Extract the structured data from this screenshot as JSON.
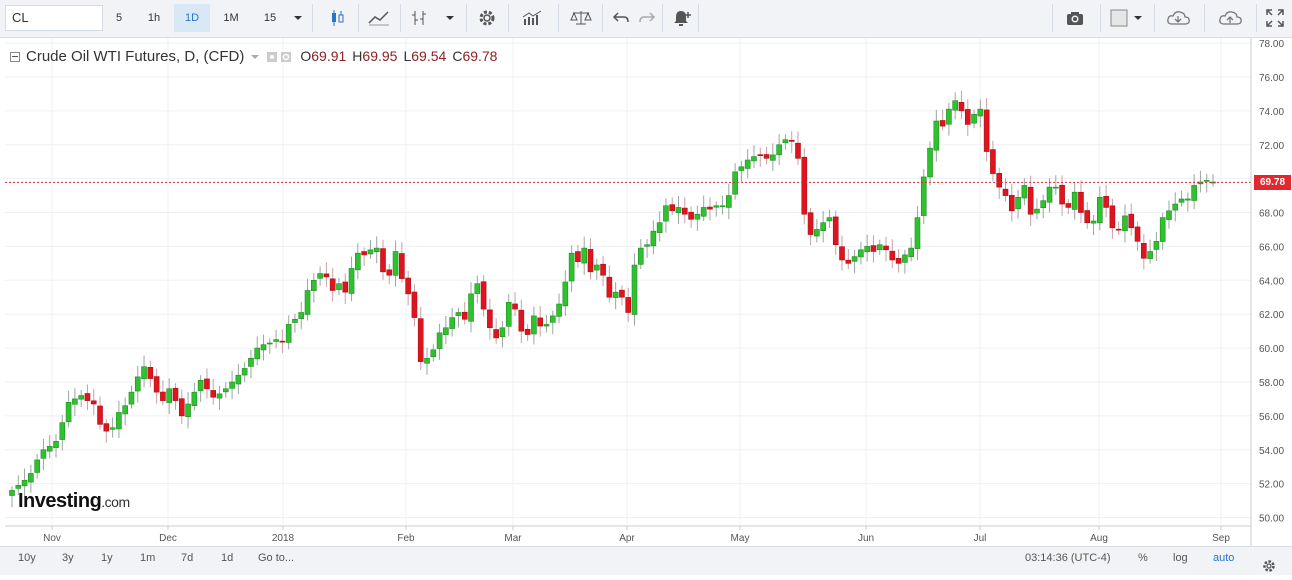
{
  "toolbar": {
    "symbol": "CL",
    "intervals": [
      "5",
      "1h",
      "1D",
      "1M",
      "15"
    ],
    "selected_interval": "1D",
    "icons": [
      "candles-icon",
      "indicators-icon",
      "compare-icon",
      "settings-icon",
      "studies-icon",
      "scale-icon",
      "undo-icon",
      "redo-icon",
      "alert-icon",
      "camera-icon",
      "template-icon",
      "cloud-load-icon",
      "cloud-save-icon",
      "fullscreen-icon"
    ]
  },
  "legend": {
    "title": "Crude Oil WTI Futures, D, (CFD)",
    "o_label": "O",
    "o": "69.91",
    "h_label": "H",
    "h": "69.95",
    "l_label": "L",
    "l": "69.54",
    "c_label": "C",
    "c": "69.78"
  },
  "logo": {
    "name": "Investing",
    "suffix": ".com"
  },
  "bottom": {
    "ranges": [
      "10y",
      "3y",
      "1y",
      "1m",
      "7d",
      "1d",
      "Go to..."
    ],
    "time": "03:14:36 (UTC-4)",
    "options": [
      "%",
      "log",
      "auto"
    ]
  },
  "colors": {
    "up": "#2fc12f",
    "down": "#e0141e",
    "last_price_line": "#e0282e",
    "axis_text": "#555555",
    "grid": "#eef1f5"
  },
  "chart_data": {
    "type": "candlestick",
    "y_ticks": [
      "78.00",
      "76.00",
      "74.00",
      "72.00",
      "70.00",
      "68.00",
      "66.00",
      "64.00",
      "62.00",
      "60.00",
      "58.00",
      "56.00",
      "54.00",
      "52.00",
      "50.00"
    ],
    "ylim": [
      49.5,
      78.3
    ],
    "x_ticks": [
      "Nov",
      "Dec",
      "2018",
      "Feb",
      "Mar",
      "Apr",
      "May",
      "Jun",
      "Jul",
      "Aug",
      "Sep"
    ],
    "last_price": "69.78",
    "close_series": [
      51.6,
      51.9,
      52.2,
      52.6,
      53.4,
      54.0,
      54.2,
      54.5,
      55.6,
      56.8,
      57.0,
      57.2,
      56.9,
      56.7,
      55.5,
      55.1,
      55.3,
      56.2,
      56.6,
      57.4,
      58.3,
      58.9,
      58.2,
      57.4,
      56.9,
      57.6,
      56.9,
      56.0,
      56.7,
      57.4,
      58.1,
      57.6,
      57.1,
      57.3,
      57.6,
      58.0,
      58.4,
      58.8,
      59.4,
      60.0,
      60.2,
      60.3,
      60.5,
      60.4,
      61.4,
      61.7,
      62.1,
      63.4,
      64.0,
      64.4,
      64.2,
      63.4,
      63.8,
      63.3,
      64.7,
      65.6,
      65.5,
      65.8,
      65.9,
      64.5,
      64.3,
      65.7,
      64.1,
      63.2,
      61.8,
      59.2,
      59.4,
      59.9,
      60.9,
      61.2,
      61.8,
      62.1,
      61.7,
      63.2,
      63.8,
      62.3,
      61.2,
      60.6,
      61.2,
      62.7,
      62.3,
      61.0,
      60.8,
      61.9,
      61.3,
      61.4,
      61.9,
      62.6,
      63.9,
      65.6,
      65.1,
      65.9,
      64.5,
      64.9,
      64.3,
      63.0,
      63.3,
      63.0,
      62.1,
      64.9,
      65.9,
      66.1,
      66.9,
      67.4,
      68.4,
      68.1,
      68.3,
      67.9,
      67.6,
      67.9,
      68.3,
      68.2,
      68.4,
      68.4,
      69.0,
      70.4,
      70.7,
      71.1,
      71.3,
      71.4,
      71.2,
      71.4,
      72.0,
      72.3,
      72.2,
      71.2,
      67.9,
      66.7,
      67.0,
      67.4,
      67.7,
      66.1,
      65.2,
      65.0,
      65.4,
      65.8,
      66.0,
      65.7,
      66.1,
      65.8,
      65.2,
      65.0,
      65.5,
      65.9,
      67.7,
      70.1,
      71.8,
      73.4,
      73.1,
      74.1,
      74.6,
      74.0,
      73.2,
      73.8,
      74.1,
      71.6,
      70.3,
      69.5,
      69.0,
      68.1,
      68.9,
      69.6,
      67.9,
      68.2,
      68.7,
      69.5,
      69.5,
      68.5,
      68.3,
      69.2,
      68.0,
      67.4,
      67.5,
      68.9,
      68.3,
      67.1,
      67.0,
      67.8,
      67.1,
      66.3,
      65.3,
      65.7,
      66.3,
      67.7,
      68.1,
      68.5,
      68.8,
      68.8,
      69.6,
      69.8,
      69.9,
      69.8
    ]
  }
}
